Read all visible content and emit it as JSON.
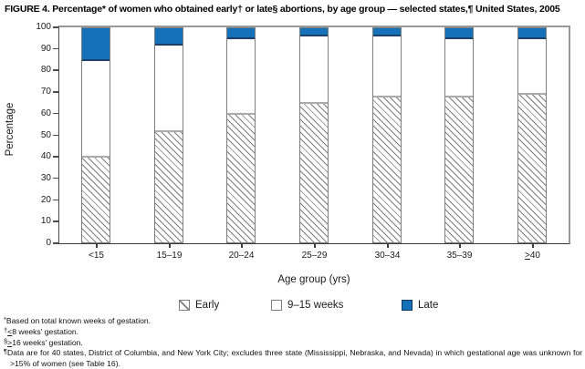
{
  "figure": {
    "title": "FIGURE 4. Percentage* of women who obtained early† or late§ abortions, by age group — selected states,¶ United States, 2005"
  },
  "chart_data": {
    "type": "bar",
    "stacked": true,
    "title": "FIGURE 4. Percentage* of women who obtained early† or late§ abortions, by age group — selected states,¶ United States, 2005",
    "xlabel": "Age group (yrs)",
    "ylabel": "Percentage",
    "ylim": [
      0,
      100
    ],
    "yticks": [
      0,
      10,
      20,
      30,
      40,
      50,
      60,
      70,
      80,
      90,
      100
    ],
    "grid": false,
    "legend_position": "bottom",
    "categories": [
      "<15",
      "15–19",
      "20–24",
      "25–29",
      "30–34",
      "35–39",
      ">40"
    ],
    "xtick_underline_first_char": [
      false,
      false,
      false,
      false,
      false,
      false,
      true
    ],
    "series": [
      {
        "name": "Early",
        "style": "hatched",
        "values": [
          40,
          52,
          60,
          65,
          68,
          68,
          69
        ]
      },
      {
        "name": "9–15 weeks",
        "style": "white",
        "values": [
          45,
          40,
          35,
          31,
          28,
          27,
          26
        ]
      },
      {
        "name": "Late",
        "style": "blue",
        "values": [
          15,
          8,
          5,
          4,
          4,
          5,
          5
        ]
      }
    ]
  },
  "legend": {
    "items": [
      {
        "label": "Early",
        "swatch": "hatched-swatch"
      },
      {
        "label": "9–15 weeks",
        "swatch": "white-swatch"
      },
      {
        "label": "Late",
        "swatch": "blue-swatch"
      }
    ]
  },
  "colors": {
    "late_blue": "#1470b8",
    "late_divider": "#1d3f68",
    "bar_border": "#7f7f7f",
    "plot_border": "#999999",
    "axis": "#4d4d4d"
  },
  "footnotes": [
    {
      "marker": "*",
      "symbol": "",
      "text": "Based on total known weeks of gestation."
    },
    {
      "marker": "†",
      "symbol": "<",
      "text": "8 weeks' gestation."
    },
    {
      "marker": "§",
      "symbol": ">",
      "text": "16 weeks' gestation."
    },
    {
      "marker": "¶",
      "symbol": "",
      "text": "Data are for 40 states, District of Columbia, and New York City; excludes three state (Mississippi, Nebraska, and Nevada) in which gestational age was unknown for >15% of women (see Table 16)."
    }
  ]
}
